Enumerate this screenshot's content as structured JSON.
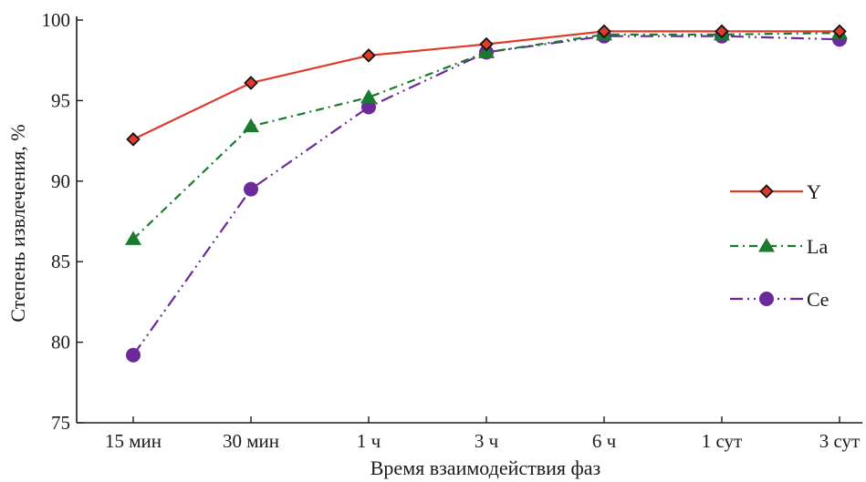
{
  "chart_data": {
    "type": "line",
    "title": "",
    "xlabel": "Время взаимодействия фаз",
    "ylabel": "Степень извлечения, %",
    "categories": [
      "15 мин",
      "30 мин",
      "1 ч",
      "3 ч",
      "6 ч",
      "1 сут",
      "3 сут"
    ],
    "ylim": [
      75,
      100
    ],
    "yticks": [
      75,
      80,
      85,
      90,
      95,
      100
    ],
    "grid": false,
    "legend_position": "right",
    "series": [
      {
        "name": "Y",
        "values": [
          92.6,
          96.1,
          97.8,
          98.5,
          99.3,
          99.3,
          99.3
        ],
        "color": "#e03a2a",
        "marker": "diamond",
        "line_style": "solid"
      },
      {
        "name": "La",
        "values": [
          86.4,
          93.4,
          95.2,
          98.0,
          99.1,
          99.1,
          99.2
        ],
        "color": "#1a7a2e",
        "marker": "triangle",
        "line_style": "dash-dot"
      },
      {
        "name": "Ce",
        "values": [
          79.2,
          89.5,
          94.6,
          98.0,
          99.0,
          99.0,
          98.8
        ],
        "color": "#6a2a9a",
        "marker": "circle",
        "line_style": "dash-dot-dot"
      }
    ]
  }
}
